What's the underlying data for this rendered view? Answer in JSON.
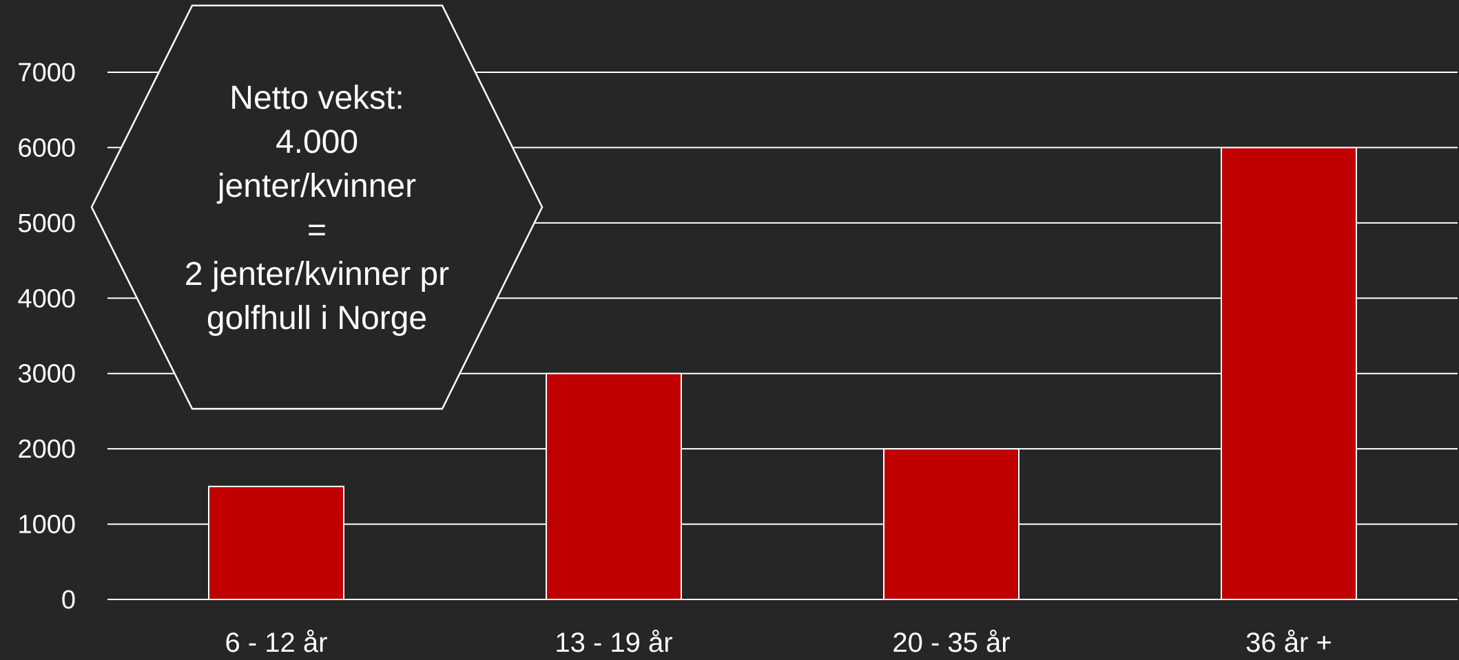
{
  "chart_data": {
    "type": "bar",
    "categories": [
      "6 - 12 år",
      "13 - 19 år",
      "20 - 35 år",
      "36 år +"
    ],
    "values": [
      1500,
      3000,
      2000,
      6000
    ],
    "yticks": [
      "0",
      "1000",
      "2000",
      "3000",
      "4000",
      "5000",
      "6000",
      "7000"
    ],
    "ylim": [
      0,
      7000
    ],
    "grid": true,
    "legend": "none",
    "colors": {
      "bar": "#c00000",
      "bar_outline": "#ffffff",
      "grid": "#ffffff",
      "background": "#262626",
      "text": "#ffffff"
    }
  },
  "callout": {
    "lines": [
      "Netto vekst:",
      "4.000",
      "jenter/kvinner",
      "=",
      "2 jenter/kvinner pr",
      "golfhull i Norge"
    ]
  }
}
